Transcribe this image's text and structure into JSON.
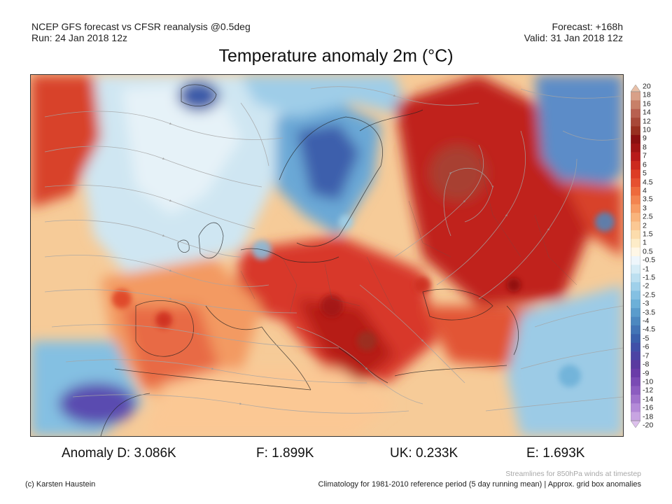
{
  "header": {
    "left_line1": "NCEP GFS forecast vs CFSR reanalysis @0.5deg",
    "left_line2": "Run: 24 Jan 2018 12z",
    "right_line1": "Forecast: +168h",
    "right_line2": "Valid: 31 Jan 2018 12z"
  },
  "title": "Temperature anomaly 2m (°C)",
  "colorbar": {
    "labels": [
      "20",
      "18",
      "16",
      "14",
      "12",
      "10",
      "9",
      "8",
      "7",
      "6",
      "5",
      "4.5",
      "4",
      "3.5",
      "3",
      "2.5",
      "2",
      "1.5",
      "1",
      "0.5",
      "-0.5",
      "-1",
      "-1.5",
      "-2",
      "-2.5",
      "-3",
      "-3.5",
      "-4",
      "-4.5",
      "-5",
      "-6",
      "-7",
      "-8",
      "-9",
      "-10",
      "-12",
      "-14",
      "-16",
      "-18",
      "-20"
    ],
    "colors": [
      "#e8c0a8",
      "#d8a088",
      "#c88068",
      "#b86050",
      "#a84838",
      "#983020",
      "#8a1010",
      "#a01414",
      "#b81a1a",
      "#cc2a1e",
      "#dd3c24",
      "#e65030",
      "#ee6a3c",
      "#f38450",
      "#f79c64",
      "#f9b47c",
      "#fbc894",
      "#fcdcac",
      "#fdecc8",
      "#fff7e6",
      "#eef6fb",
      "#d6ecf6",
      "#bcdff0",
      "#9fd0ea",
      "#84c0e2",
      "#6cb0d8",
      "#5a9ccc",
      "#4c88c0",
      "#4274b6",
      "#3a60ac",
      "#4050a8",
      "#4c44a4",
      "#5a3aa0",
      "#6a3ca8",
      "#7a4ab4",
      "#8c5cc0",
      "#a072cc",
      "#b48ad8",
      "#c8a4e2",
      "#dcc0ec"
    ]
  },
  "stats": {
    "d": "Anomaly D: 3.086K",
    "f": "F: 1.899K",
    "uk": "UK: 0.233K",
    "e": "E: 1.693K"
  },
  "footer": {
    "streamlines_note": "Streamlines for 850hPa winds at timestep",
    "credit": "(c) Karsten Haustein",
    "climatology": "Climatology for 1981-2010 reference period (5 day running mean) | Approx. grid box anomalies"
  }
}
